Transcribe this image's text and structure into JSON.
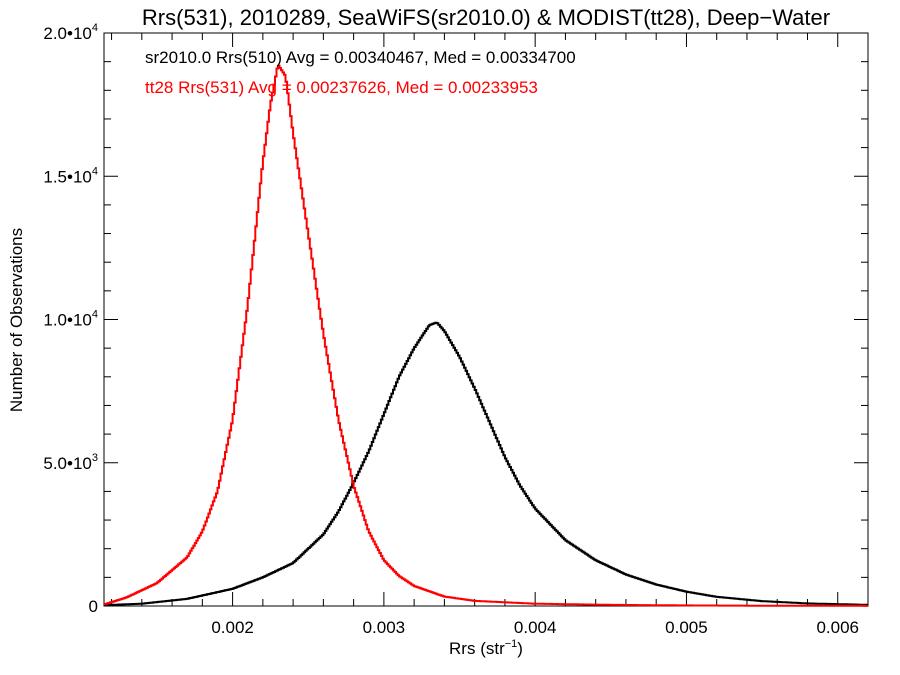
{
  "chart_data": {
    "type": "step",
    "title": "Rrs(531), 2010289, SeaWiFS(sr2010.0) & MODIST(tt28), Deep−Water",
    "xlabel": "Rrs (str",
    "xlabel_sup": "−1",
    "xlabel_end": ")",
    "ylabel": "Number of Observations",
    "xlim": [
      0.00115,
      0.0062
    ],
    "ylim": [
      0,
      20000
    ],
    "x_ticks": [
      {
        "value": 0.002,
        "label": "0.002"
      },
      {
        "value": 0.003,
        "label": "0.003"
      },
      {
        "value": 0.004,
        "label": "0.004"
      },
      {
        "value": 0.005,
        "label": "0.005"
      },
      {
        "value": 0.006,
        "label": "0.006"
      }
    ],
    "y_ticks": [
      {
        "value": 0,
        "label": "0",
        "sup": ""
      },
      {
        "value": 5000,
        "label": "5.0•10",
        "sup": "3"
      },
      {
        "value": 10000,
        "label": "1.0•10",
        "sup": "4"
      },
      {
        "value": 15000,
        "label": "1.5•10",
        "sup": "4"
      },
      {
        "value": 20000,
        "label": "2.0•10",
        "sup": "4"
      }
    ],
    "grid": false,
    "legend": "top-left",
    "series": [
      {
        "name": "sr2010.0 Rrs(510) Avg = 0.00340467, Med = 0.00334700",
        "color": "#000000",
        "x": [
          0.00115,
          0.0014,
          0.0017,
          0.002,
          0.0022,
          0.0024,
          0.0026,
          0.0027,
          0.0028,
          0.0029,
          0.003,
          0.0031,
          0.0032,
          0.00325,
          0.0033,
          0.00335,
          0.0034,
          0.0035,
          0.0036,
          0.0037,
          0.0038,
          0.0039,
          0.004,
          0.0042,
          0.0044,
          0.0046,
          0.0048,
          0.005,
          0.0052,
          0.0055,
          0.0058,
          0.0062
        ],
        "y": [
          30,
          80,
          250,
          600,
          1000,
          1500,
          2500,
          3300,
          4300,
          5400,
          6700,
          8000,
          9000,
          9400,
          9800,
          9900,
          9600,
          8700,
          7600,
          6400,
          5200,
          4200,
          3400,
          2300,
          1600,
          1100,
          750,
          500,
          320,
          170,
          90,
          40
        ]
      },
      {
        "name": "tt28 Rrs(531) Avg = 0.00237626, Med = 0.00233953",
        "color": "#ff0000",
        "x": [
          0.00115,
          0.0013,
          0.0015,
          0.0017,
          0.0018,
          0.0019,
          0.002,
          0.0021,
          0.0022,
          0.00225,
          0.0023,
          0.00235,
          0.0024,
          0.0025,
          0.0026,
          0.0027,
          0.0028,
          0.0029,
          0.003,
          0.0031,
          0.0032,
          0.0034,
          0.0036,
          0.004,
          0.0045,
          0.005,
          0.0055,
          0.0062
        ],
        "y": [
          50,
          300,
          800,
          1700,
          2600,
          4000,
          6500,
          10500,
          15500,
          17500,
          18900,
          18500,
          16500,
          13000,
          9500,
          6500,
          4200,
          2600,
          1600,
          1050,
          700,
          330,
          180,
          80,
          40,
          20,
          10,
          5
        ]
      }
    ]
  }
}
